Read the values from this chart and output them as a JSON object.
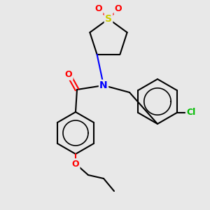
{
  "background_color": "#e8e8e8",
  "bond_color": "#000000",
  "bond_lw": 1.5,
  "atom_colors": {
    "N": "#0000ff",
    "O": "#ff0000",
    "S": "#cccc00",
    "Cl": "#00bb00",
    "C": "#000000"
  },
  "figsize": [
    3.0,
    3.0
  ],
  "dpi": 100
}
